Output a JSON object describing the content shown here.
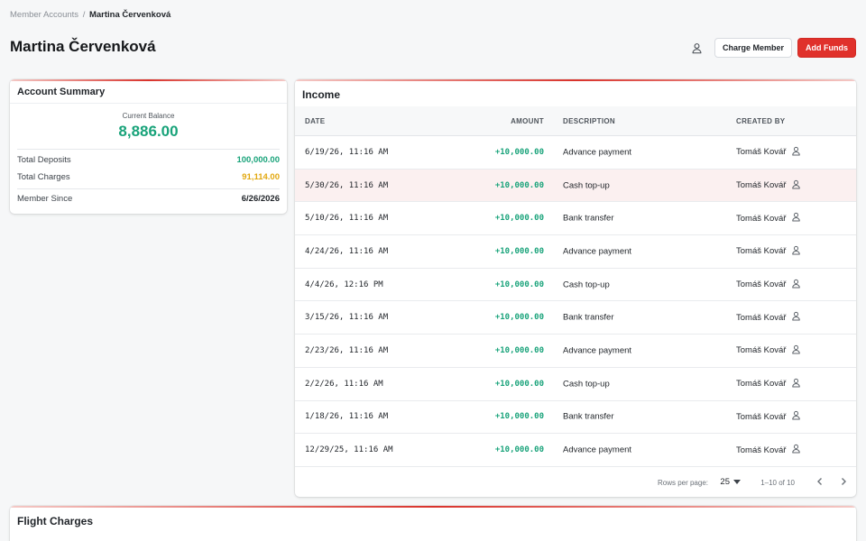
{
  "breadcrumb": {
    "parent": "Member Accounts",
    "separator": "/",
    "current": "Martina Červenková"
  },
  "page": {
    "title": "Martina Červenková"
  },
  "actions": {
    "charge_label": "Charge Member",
    "add_funds_label": "Add Funds"
  },
  "summary": {
    "title": "Account Summary",
    "balance_label": "Current Balance",
    "balance_value": "8,886.00",
    "rows": [
      {
        "label": "Total Deposits",
        "value": "100,000.00"
      },
      {
        "label": "Total Charges",
        "value": "91,114.00"
      },
      {
        "label": "Member Since",
        "value": "6/26/2026"
      }
    ]
  },
  "income": {
    "title": "Income",
    "columns": {
      "date": "DATE",
      "amount": "AMOUNT",
      "description": "DESCRIPTION",
      "created_by": "CREATED BY"
    },
    "rows": [
      {
        "date": "6/19/26, 11:16 AM",
        "amount": "+10,000.00",
        "description": "Advance payment",
        "created_by": "Tomáš Kovář"
      },
      {
        "date": "5/30/26, 11:16 AM",
        "amount": "+10,000.00",
        "description": "Cash top-up",
        "created_by": "Tomáš Kovář"
      },
      {
        "date": "5/10/26, 11:16 AM",
        "amount": "+10,000.00",
        "description": "Bank transfer",
        "created_by": "Tomáš Kovář"
      },
      {
        "date": "4/24/26, 11:16 AM",
        "amount": "+10,000.00",
        "description": "Advance payment",
        "created_by": "Tomáš Kovář"
      },
      {
        "date": "4/4/26, 12:16 PM",
        "amount": "+10,000.00",
        "description": "Cash top-up",
        "created_by": "Tomáš Kovář"
      },
      {
        "date": "3/15/26, 11:16 AM",
        "amount": "+10,000.00",
        "description": "Bank transfer",
        "created_by": "Tomáš Kovář"
      },
      {
        "date": "2/23/26, 11:16 AM",
        "amount": "+10,000.00",
        "description": "Advance payment",
        "created_by": "Tomáš Kovář"
      },
      {
        "date": "2/2/26, 11:16 AM",
        "amount": "+10,000.00",
        "description": "Cash top-up",
        "created_by": "Tomáš Kovář"
      },
      {
        "date": "1/18/26, 11:16 AM",
        "amount": "+10,000.00",
        "description": "Bank transfer",
        "created_by": "Tomáš Kovář"
      },
      {
        "date": "12/29/25, 11:16 AM",
        "amount": "+10,000.00",
        "description": "Advance payment",
        "created_by": "Tomáš Kovář"
      }
    ],
    "pagination": {
      "rows_per_page_label": "Rows per page:",
      "rows_per_page": "25",
      "range": "1–10 of 10"
    }
  },
  "flight": {
    "title": "Flight Charges"
  },
  "colors": {
    "accent": "#e0312b",
    "positive": "#19a37a",
    "warning": "#e2a80f",
    "highlight_row": "#fbf0f0"
  },
  "icons": {
    "member": "user-icon",
    "created_by": "user-icon",
    "dropdown": "caret-down-icon",
    "prev": "chevron-left-icon",
    "next": "chevron-right-icon"
  }
}
